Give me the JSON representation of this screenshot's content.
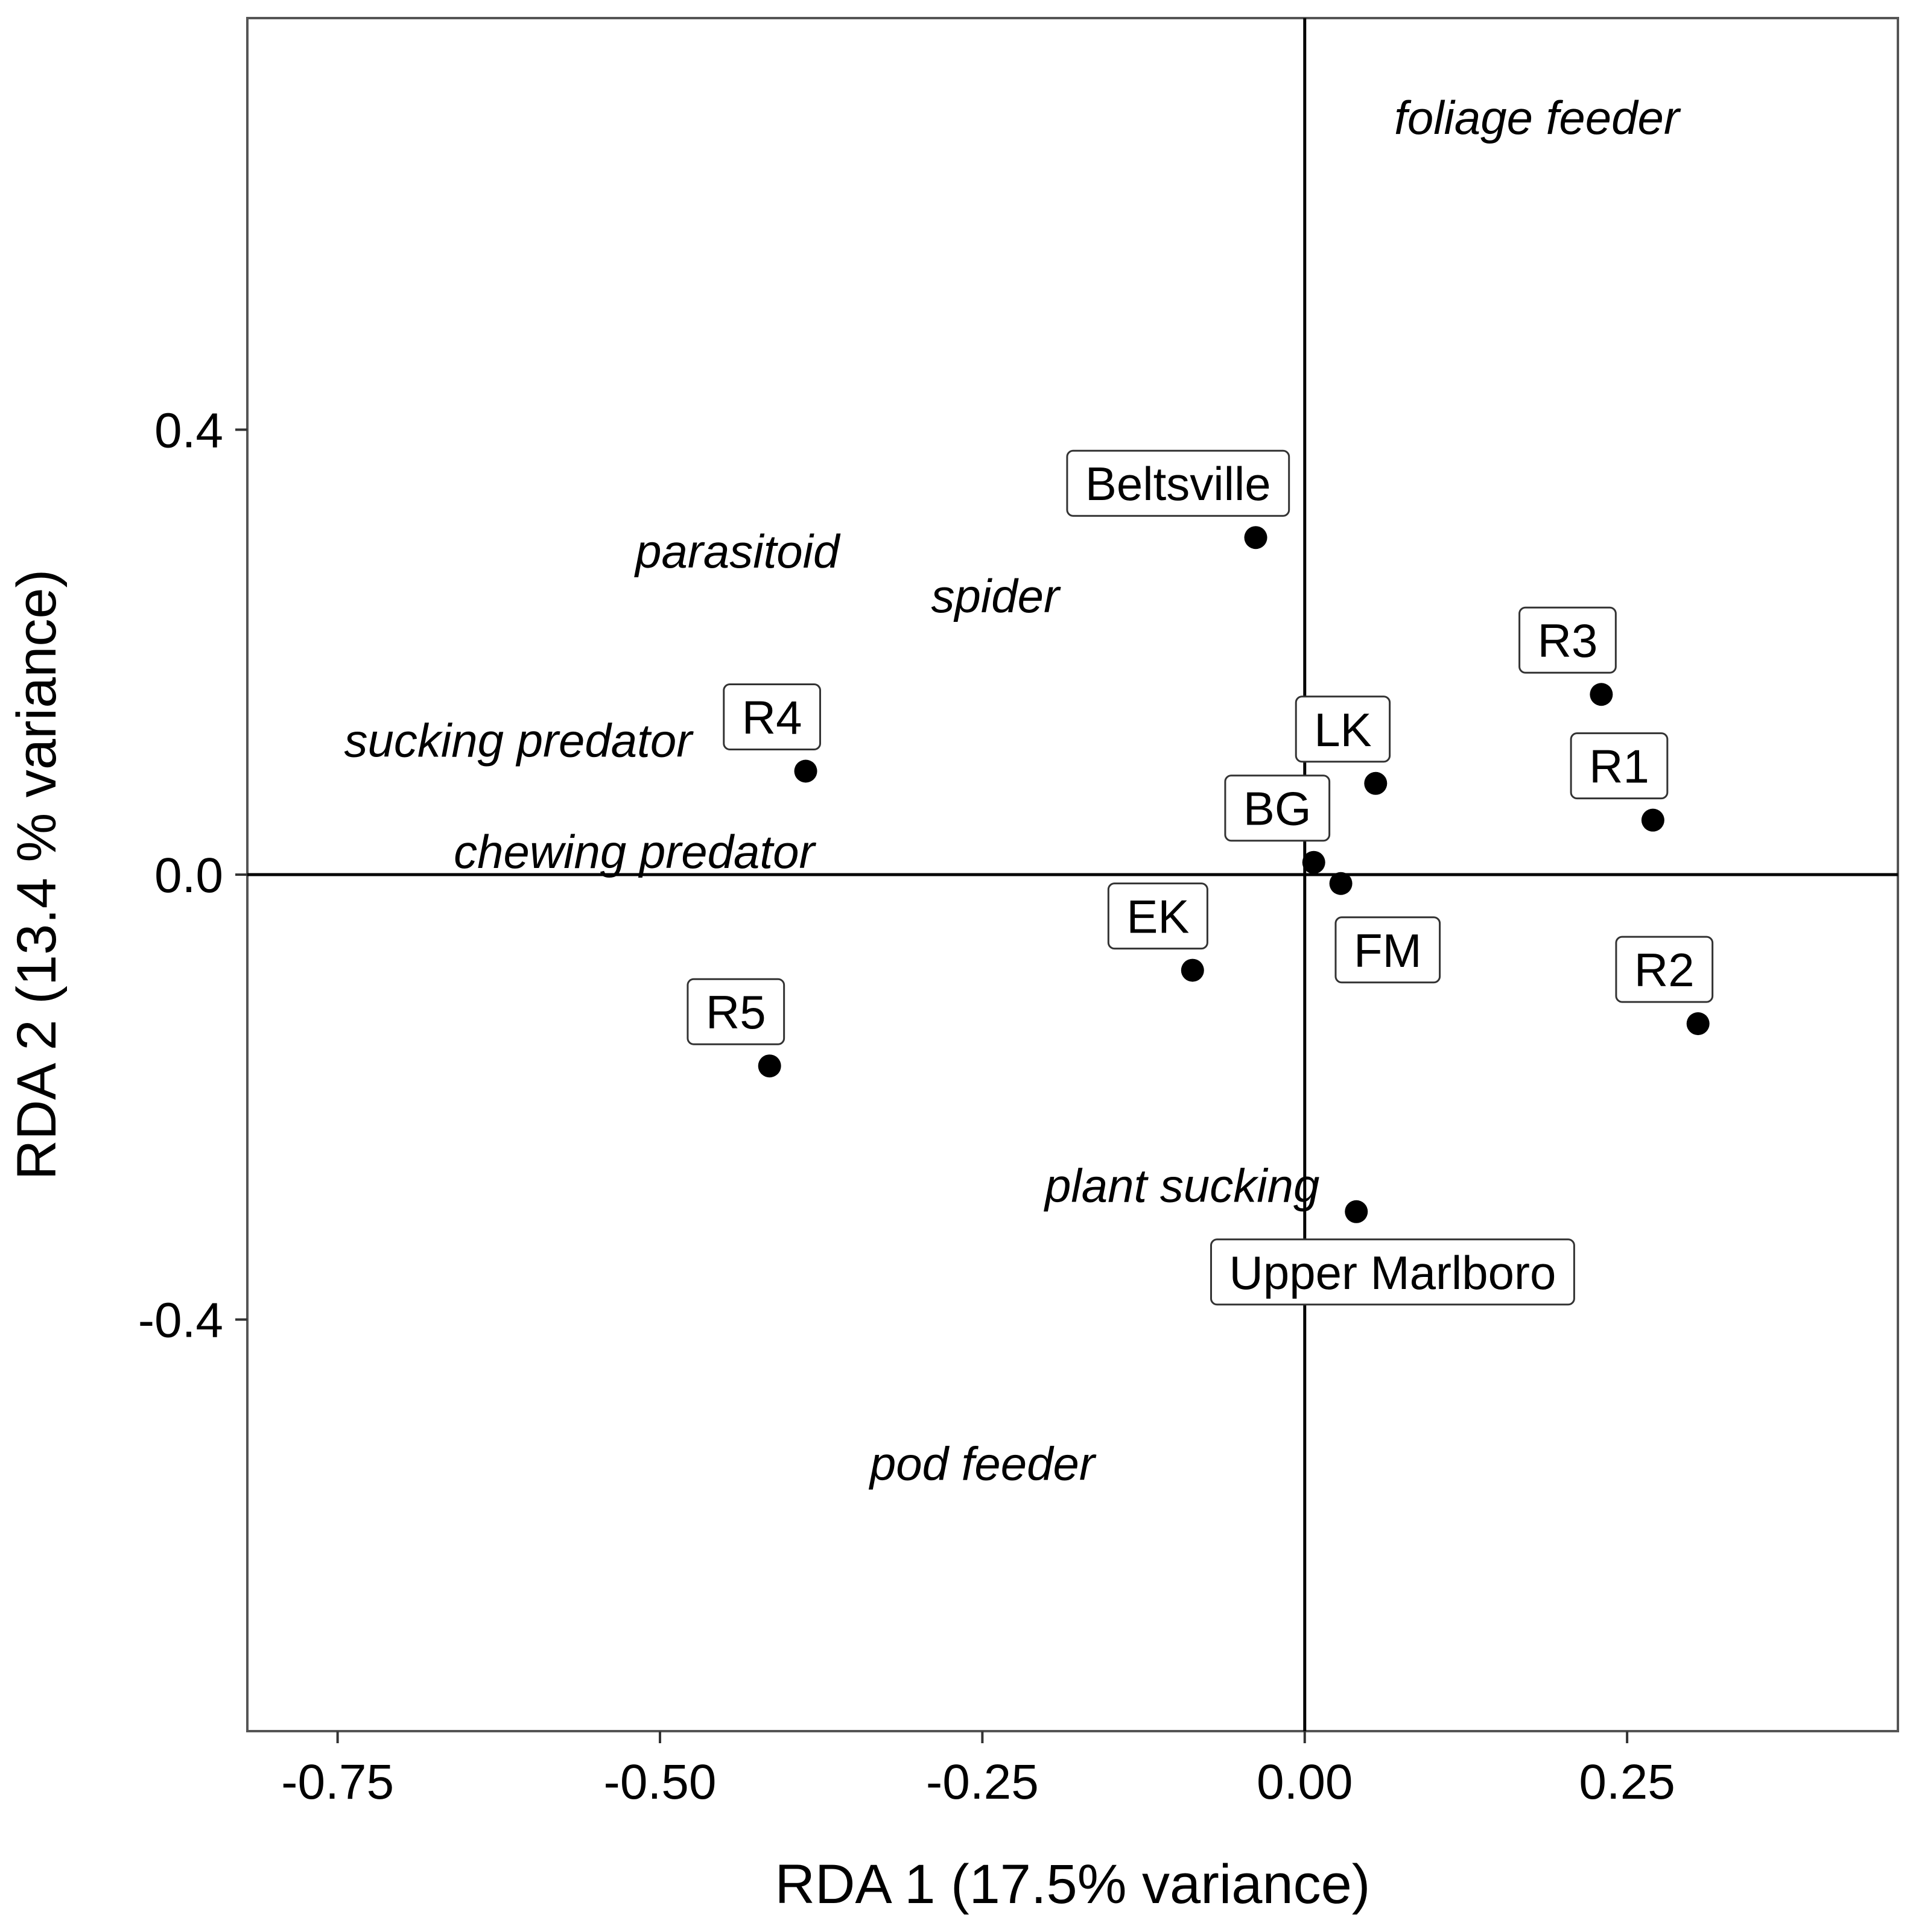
{
  "chart_data": {
    "type": "scatter",
    "title": "",
    "xlabel": "RDA 1 (17.5% variance)",
    "ylabel": "RDA 2 (13.4 % variance)",
    "xlim": [
      -0.82,
      0.46
    ],
    "ylim": [
      -0.77,
      0.77
    ],
    "xticks": [
      -0.75,
      -0.5,
      -0.25,
      0.0,
      0.25
    ],
    "xtick_labels": [
      "-0.75",
      "-0.50",
      "-0.25",
      "0.00",
      "0.25"
    ],
    "yticks": [
      -0.4,
      0.0,
      0.4
    ],
    "ytick_labels": [
      "-0.4",
      "0.0",
      "0.4"
    ],
    "grid": false,
    "reference_lines": {
      "x": 0.0,
      "y": 0.0
    },
    "sites": [
      {
        "name": "Beltsville",
        "x": -0.038,
        "y": 0.303
      },
      {
        "name": "R3",
        "x": 0.23,
        "y": 0.162
      },
      {
        "name": "R4",
        "x": -0.387,
        "y": 0.093
      },
      {
        "name": "LK",
        "x": 0.055,
        "y": 0.082
      },
      {
        "name": "R1",
        "x": 0.27,
        "y": 0.049
      },
      {
        "name": "BG",
        "x": 0.007,
        "y": 0.011
      },
      {
        "name": "FM",
        "x": 0.028,
        "y": -0.008
      },
      {
        "name": "EK",
        "x": -0.087,
        "y": -0.086
      },
      {
        "name": "R2",
        "x": 0.305,
        "y": -0.134
      },
      {
        "name": "R5",
        "x": -0.415,
        "y": -0.172
      },
      {
        "name": "Upper Marlboro",
        "x": 0.04,
        "y": -0.303
      }
    ],
    "species": [
      {
        "name": "foliage feeder",
        "x": 0.18,
        "y": 0.68
      },
      {
        "name": "parasitoid",
        "x": -0.44,
        "y": 0.29
      },
      {
        "name": "spider",
        "x": -0.24,
        "y": 0.25
      },
      {
        "name": "sucking predator",
        "x": -0.61,
        "y": 0.12
      },
      {
        "name": "chewing predator",
        "x": -0.52,
        "y": 0.02
      },
      {
        "name": "plant sucking",
        "x": -0.095,
        "y": -0.28
      },
      {
        "name": "pod feeder",
        "x": -0.25,
        "y": -0.53
      }
    ]
  }
}
